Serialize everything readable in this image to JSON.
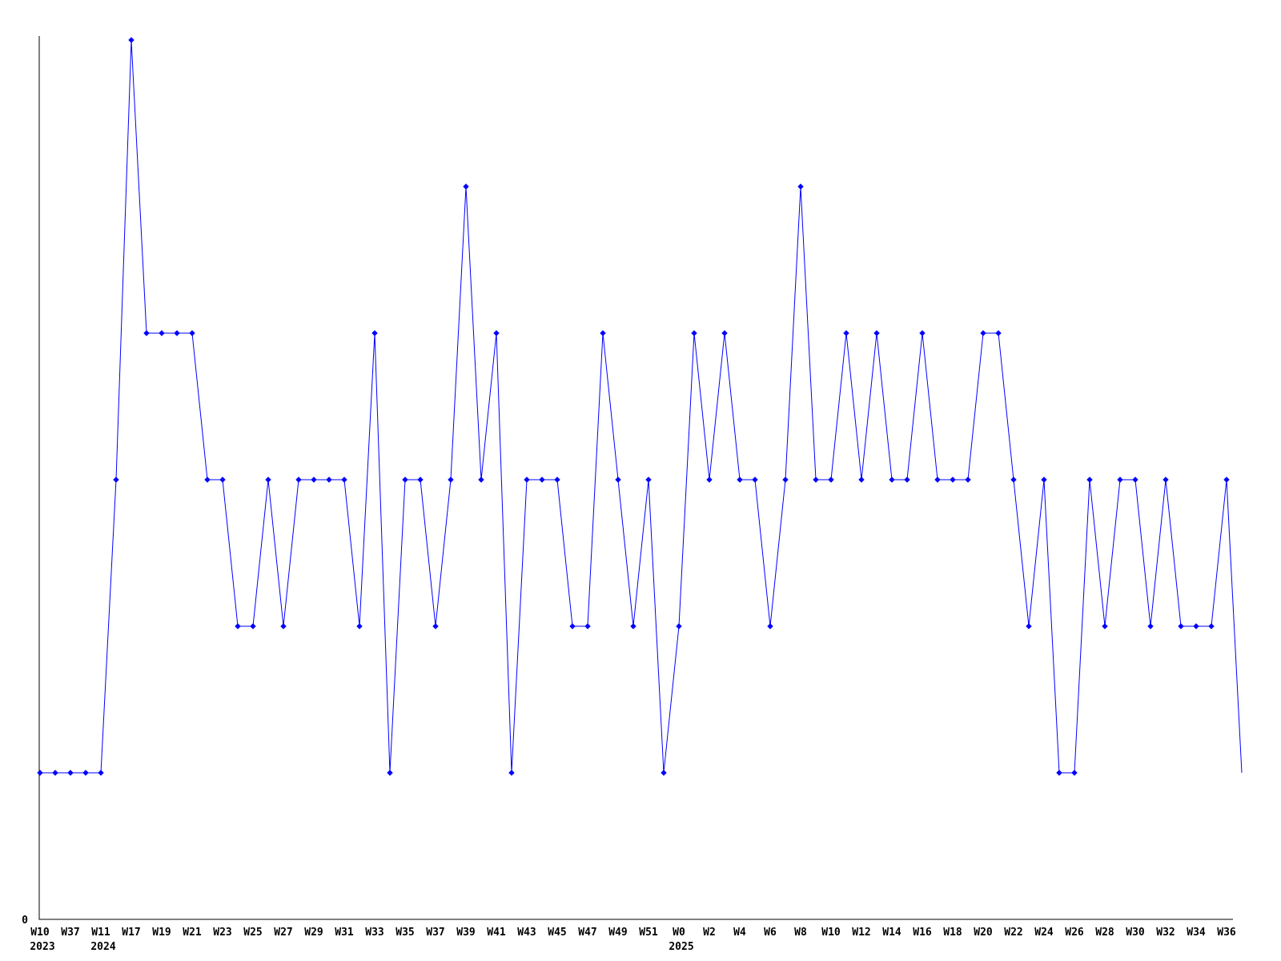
{
  "chart_data": {
    "type": "line",
    "title": "",
    "xlabel": "",
    "ylabel": "",
    "y_axis_zero_label": "0",
    "line_color": "#0000ff",
    "axis_color": "#000000",
    "background_color": "#ffffff",
    "grid": false,
    "legend": false,
    "marker": "diamond",
    "last_point_has_marker": false,
    "points_per_tick": 2,
    "ylim": [
      0,
      6.1
    ],
    "x_tick_labels": [
      "W10",
      "W37",
      "W11",
      "W17",
      "W19",
      "W21",
      "W23",
      "W25",
      "W27",
      "W29",
      "W31",
      "W33",
      "W35",
      "W37",
      "W39",
      "W41",
      "W43",
      "W45",
      "W47",
      "W49",
      "W51",
      "W0",
      "W2",
      "W4",
      "W6",
      "W8",
      "W10",
      "W12",
      "W14",
      "W16",
      "W18",
      "W20",
      "W22",
      "W24",
      "W26",
      "W28",
      "W30",
      "W32",
      "W34",
      "W36"
    ],
    "x_tick_years": [
      {
        "tick_index": 0,
        "text": "2023"
      },
      {
        "tick_index": 2,
        "text": "2024"
      },
      {
        "tick_index": 21,
        "text": "2025"
      }
    ],
    "values": [
      1,
      1,
      1,
      1,
      1,
      3,
      6,
      4,
      4,
      4,
      4,
      3,
      3,
      2,
      2,
      3,
      2,
      3,
      3,
      3,
      3,
      2,
      4,
      1,
      3,
      3,
      2,
      3,
      5,
      3,
      4,
      1,
      3,
      3,
      3,
      2,
      2,
      4,
      3,
      2,
      3,
      1,
      2,
      4,
      3,
      4,
      3,
      3,
      2,
      3,
      5,
      3,
      3,
      4,
      3,
      4,
      3,
      3,
      4,
      3,
      3,
      3,
      4,
      4,
      3,
      2,
      3,
      1,
      1,
      3,
      2,
      3,
      3,
      2,
      3,
      2,
      2,
      2,
      3,
      1
    ]
  }
}
